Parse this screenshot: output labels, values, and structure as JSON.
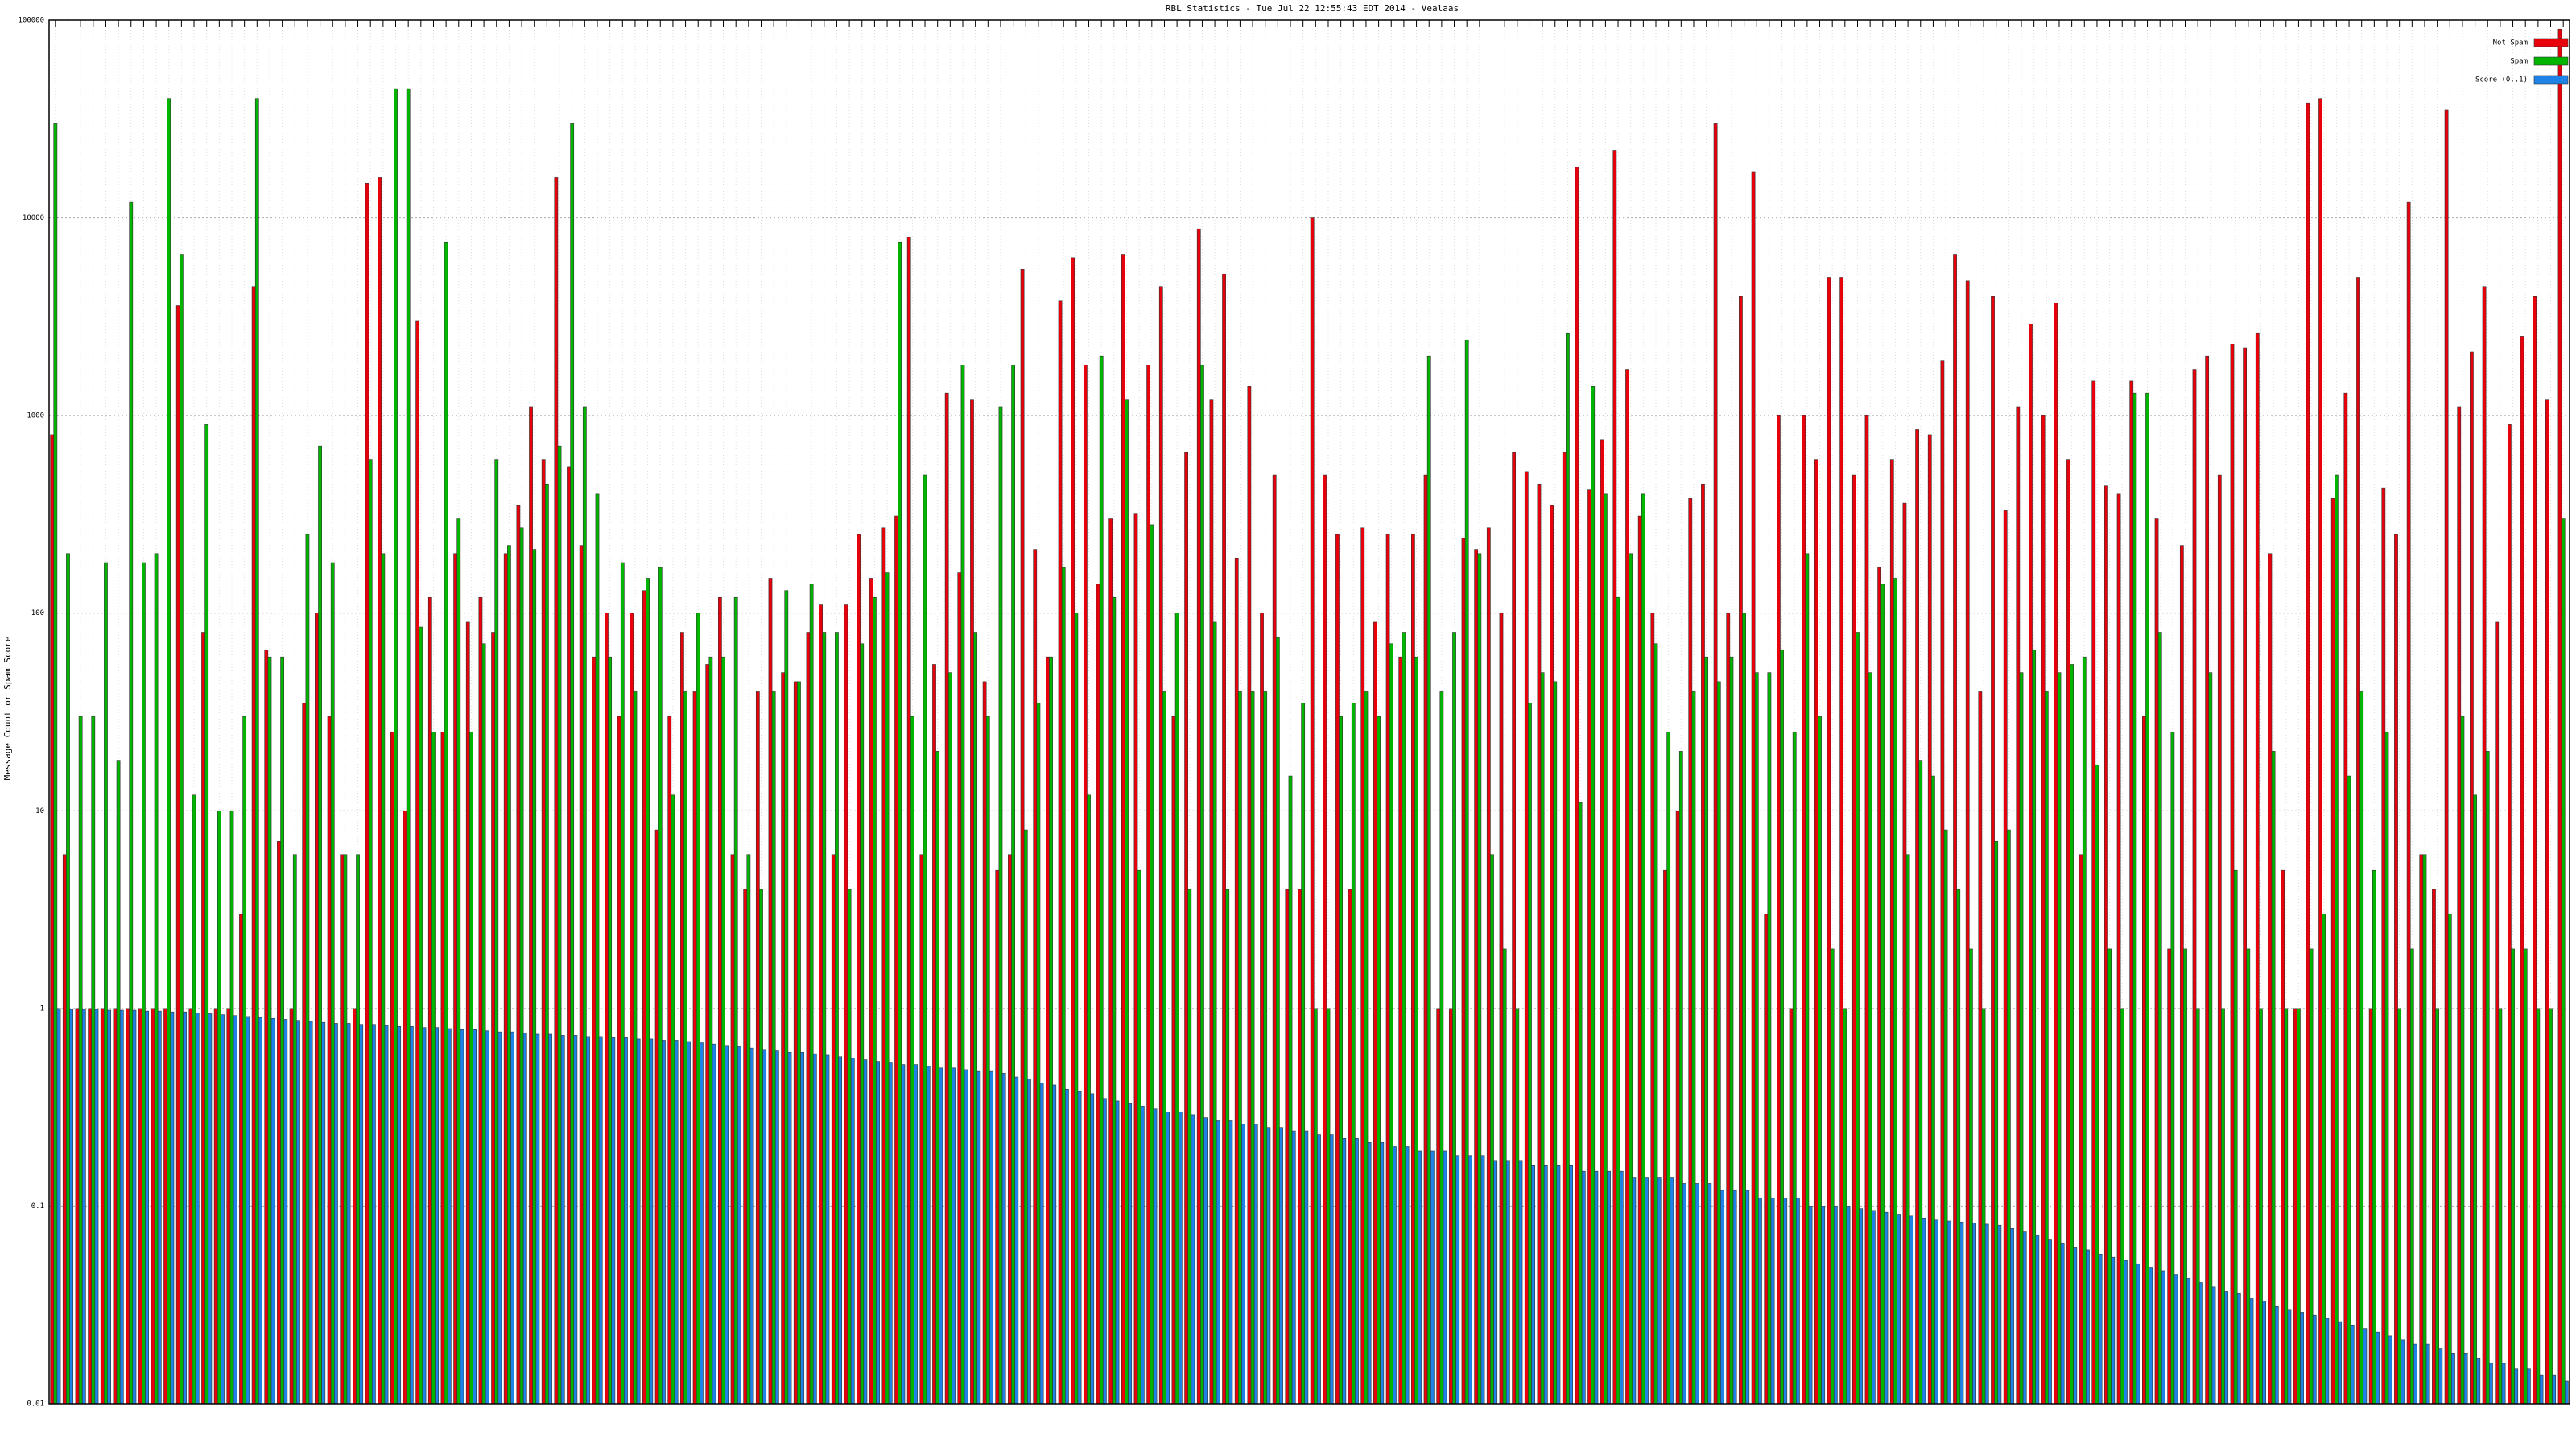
{
  "chart_data": {
    "type": "bar",
    "title": "RBL Statistics - Tue Jul 22 12:55:43 EDT 2014 - Vealaas",
    "y_label": "Message Count or Spam Score",
    "log_scale": true,
    "grid": true,
    "legend": "top-right",
    "ylim": [
      0.01,
      100000
    ],
    "yticks": [
      0.01,
      0.1,
      1,
      10,
      100,
      1000,
      10000,
      100000
    ],
    "categories": [
      null,
      null,
      null,
      null,
      null,
      null,
      null,
      null,
      null,
      null,
      null,
      null,
      null,
      null,
      null,
      null,
      null,
      null,
      null,
      null,
      null,
      null,
      null,
      null,
      null,
      null,
      null,
      null,
      null,
      null,
      null,
      null,
      null,
      null,
      null,
      null,
      null,
      null,
      null,
      null,
      null,
      null,
      null,
      null,
      null,
      null,
      null,
      null,
      null,
      null,
      null,
      null,
      null,
      null,
      null,
      null,
      null,
      null,
      null,
      null,
      null,
      null,
      null,
      null,
      null,
      null,
      null,
      null,
      null,
      null,
      null,
      null,
      null,
      null,
      null,
      null,
      null,
      null,
      null,
      null,
      null,
      null,
      null,
      null,
      null,
      null,
      null,
      null,
      null,
      null,
      null,
      null,
      null,
      null,
      null,
      null,
      null,
      null,
      null,
      null,
      null,
      null,
      null,
      null,
      null,
      null,
      null,
      null,
      null,
      null,
      null,
      null,
      null,
      null,
      null,
      null,
      null,
      null,
      null,
      null,
      null,
      null,
      null,
      null,
      null,
      null,
      null,
      null,
      null,
      null,
      null,
      null,
      null,
      null,
      null,
      null,
      null,
      null,
      null,
      null,
      null,
      null,
      null,
      null,
      null,
      null,
      null,
      null,
      null,
      null,
      null,
      null,
      null,
      null,
      null,
      null,
      null,
      null,
      null,
      null,
      null,
      null,
      null,
      null,
      null,
      null,
      null,
      null,
      null,
      null,
      null,
      null,
      null,
      null,
      null,
      null,
      null,
      null,
      null,
      null,
      null,
      null,
      null,
      null,
      null,
      null,
      null,
      null,
      null,
      null,
      null,
      null,
      null,
      null,
      null,
      null,
      null,
      null,
      null,
      null
    ],
    "series": [
      {
        "name": "Not Spam",
        "color": "#e8000b",
        "values": [
          800,
          6,
          1,
          1,
          1,
          1,
          1,
          1,
          1,
          1,
          3600,
          1,
          80,
          1,
          1,
          3,
          4500,
          65,
          7,
          1,
          35,
          100,
          30,
          6,
          1,
          15000,
          16000,
          25,
          10,
          3000,
          120,
          25,
          200,
          90,
          120,
          80,
          200,
          350,
          1100,
          600,
          16000,
          550,
          220,
          60,
          100,
          30,
          100,
          130,
          8,
          30,
          80,
          40,
          55,
          120,
          6,
          4,
          40,
          150,
          50,
          45,
          80,
          110,
          6,
          110,
          250,
          150,
          270,
          310,
          8000,
          6,
          55,
          1300,
          160,
          1200,
          45,
          5,
          6,
          5500,
          210,
          60,
          3800,
          6300,
          1800,
          140,
          300,
          6500,
          320,
          1800,
          4500,
          30,
          650,
          8800,
          1200,
          5200,
          190,
          1400,
          100,
          500,
          4,
          4,
          10000,
          500,
          250,
          4,
          270,
          90,
          250,
          60,
          250,
          500,
          1,
          1,
          240,
          210,
          270,
          100,
          650,
          520,
          450,
          350,
          650,
          18000,
          420,
          750,
          22000,
          1700,
          310,
          100,
          5,
          10,
          380,
          450,
          30000,
          100,
          4000,
          17000,
          3,
          1000,
          1,
          1000,
          600,
          5000,
          5000,
          500,
          1000,
          170,
          600,
          360,
          850,
          800,
          1900,
          6500,
          4800,
          40,
          4000,
          330,
          1100,
          2900,
          1000,
          3700,
          600,
          6,
          1500,
          440,
          400,
          1500,
          30,
          300,
          2,
          220,
          1700,
          2000,
          500,
          2300,
          2200,
          2600,
          200,
          5,
          1,
          38000,
          40000,
          380,
          1300,
          5000,
          1,
          430,
          250,
          12000,
          6,
          4,
          35000,
          1100,
          2100,
          4500,
          90,
          900,
          2500,
          4000,
          1200,
          90000
        ]
      },
      {
        "name": "Spam",
        "color": "#00b400",
        "values": [
          30000,
          200,
          30,
          30,
          180,
          18,
          12000,
          180,
          200,
          40000,
          6500,
          12,
          900,
          10,
          10,
          30,
          40000,
          60,
          60,
          6,
          250,
          700,
          180,
          6,
          6,
          600,
          200,
          45000,
          45000,
          85,
          25,
          7500,
          300,
          25,
          70,
          600,
          220,
          270,
          210,
          450,
          700,
          30000,
          1100,
          400,
          60,
          180,
          40,
          150,
          170,
          12,
          40,
          100,
          60,
          60,
          120,
          6,
          4,
          40,
          130,
          45,
          140,
          80,
          80,
          4,
          70,
          120,
          160,
          7500,
          30,
          500,
          20,
          50,
          1800,
          80,
          30,
          1100,
          1800,
          8,
          35,
          60,
          170,
          100,
          12,
          2000,
          120,
          1200,
          5,
          280,
          40,
          100,
          4,
          1800,
          90,
          4,
          40,
          40,
          40,
          75,
          15,
          35,
          1,
          1,
          30,
          35,
          40,
          30,
          70,
          80,
          60,
          2000,
          40,
          80,
          2400,
          200,
          6,
          2,
          1,
          35,
          50,
          45,
          2600,
          11,
          1400,
          400,
          120,
          200,
          400,
          70,
          25,
          20,
          40,
          60,
          45,
          60,
          100,
          50,
          50,
          65,
          25,
          200,
          30,
          2,
          1,
          80,
          50,
          140,
          150,
          6,
          18,
          15,
          8,
          4,
          2,
          1,
          7,
          8,
          50,
          65,
          40,
          50,
          55,
          60,
          17,
          2,
          1,
          1300,
          1300,
          80,
          25,
          2,
          1,
          50,
          1,
          5,
          2,
          1,
          20,
          1,
          1,
          2,
          3,
          500,
          15,
          40,
          5,
          25,
          1,
          2,
          6,
          1,
          3,
          30,
          12,
          20,
          1,
          2,
          2,
          1,
          1,
          300
        ]
      },
      {
        "name": "Score (0..1)",
        "color": "#1e82e6",
        "values": [
          1.0,
          0.99,
          0.99,
          0.99,
          0.98,
          0.98,
          0.98,
          0.97,
          0.97,
          0.96,
          0.96,
          0.95,
          0.94,
          0.93,
          0.92,
          0.91,
          0.9,
          0.89,
          0.88,
          0.87,
          0.86,
          0.85,
          0.84,
          0.84,
          0.83,
          0.83,
          0.82,
          0.81,
          0.81,
          0.8,
          0.8,
          0.79,
          0.78,
          0.78,
          0.77,
          0.76,
          0.76,
          0.75,
          0.74,
          0.74,
          0.73,
          0.73,
          0.72,
          0.72,
          0.71,
          0.71,
          0.7,
          0.7,
          0.69,
          0.69,
          0.68,
          0.67,
          0.66,
          0.65,
          0.64,
          0.63,
          0.62,
          0.61,
          0.6,
          0.6,
          0.59,
          0.58,
          0.57,
          0.56,
          0.55,
          0.54,
          0.53,
          0.52,
          0.52,
          0.51,
          0.5,
          0.5,
          0.49,
          0.48,
          0.48,
          0.47,
          0.45,
          0.44,
          0.42,
          0.41,
          0.39,
          0.38,
          0.37,
          0.35,
          0.34,
          0.33,
          0.32,
          0.31,
          0.3,
          0.3,
          0.29,
          0.28,
          0.27,
          0.27,
          0.26,
          0.26,
          0.25,
          0.25,
          0.24,
          0.24,
          0.23,
          0.23,
          0.22,
          0.22,
          0.21,
          0.21,
          0.2,
          0.2,
          0.19,
          0.19,
          0.19,
          0.18,
          0.18,
          0.18,
          0.17,
          0.17,
          0.17,
          0.16,
          0.16,
          0.16,
          0.16,
          0.15,
          0.15,
          0.15,
          0.15,
          0.14,
          0.14,
          0.14,
          0.14,
          0.13,
          0.13,
          0.13,
          0.12,
          0.12,
          0.12,
          0.11,
          0.11,
          0.11,
          0.11,
          0.1,
          0.1,
          0.1,
          0.1,
          0.097,
          0.095,
          0.093,
          0.091,
          0.089,
          0.087,
          0.085,
          0.084,
          0.083,
          0.082,
          0.081,
          0.08,
          0.077,
          0.074,
          0.071,
          0.068,
          0.065,
          0.062,
          0.06,
          0.057,
          0.055,
          0.053,
          0.051,
          0.049,
          0.047,
          0.045,
          0.043,
          0.041,
          0.039,
          0.037,
          0.036,
          0.034,
          0.033,
          0.031,
          0.03,
          0.029,
          0.028,
          0.027,
          0.026,
          0.025,
          0.024,
          0.023,
          0.022,
          0.021,
          0.02,
          0.02,
          0.019,
          0.018,
          0.018,
          0.017,
          0.016,
          0.016,
          0.015,
          0.015,
          0.014,
          0.014,
          0.013
        ]
      }
    ]
  }
}
